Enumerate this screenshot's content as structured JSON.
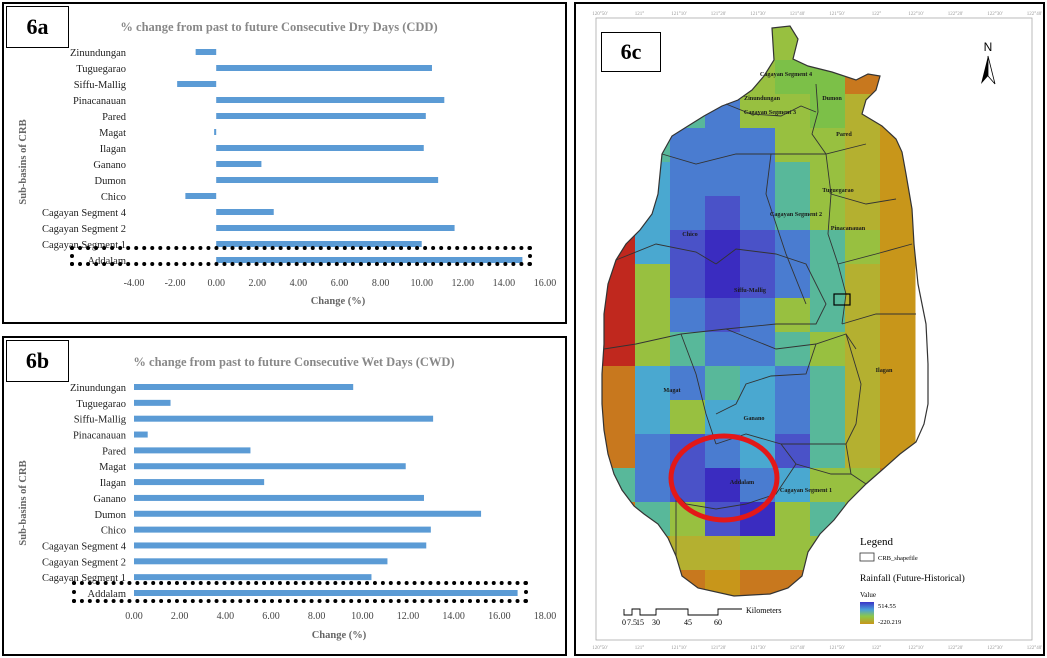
{
  "chart_data": [
    {
      "type": "bar",
      "panel_label": "6a",
      "title": "% change from past to future  Consecutive Dry Days (CDD)",
      "xlabel": "Change (%)",
      "ylabel": "Sub-basins of CRB",
      "xlim": [
        -4,
        16
      ],
      "xticks": [
        "-4.00",
        "-2.00",
        "0.00",
        "2.00",
        "4.00",
        "6.00",
        "8.00",
        "10.00",
        "12.00",
        "14.00",
        "16.00"
      ],
      "categories": [
        "Zinundungan",
        "Tuguegarao",
        "Siffu-Mallig",
        "Pinacanauan",
        "Pared",
        "Magat",
        "Ilagan",
        "Ganano",
        "Dumon",
        "Chico",
        "Cagayan Segment 4",
        "Cagayan Segment 2",
        "Cagayan Segment 1",
        "Addalam"
      ],
      "values": [
        -1.0,
        10.5,
        -1.9,
        11.1,
        10.2,
        -0.1,
        10.1,
        2.2,
        10.8,
        -1.5,
        2.8,
        11.6,
        10.0,
        14.9
      ],
      "highlighted": "Addalam",
      "color": "#5b9bd5"
    },
    {
      "type": "bar",
      "panel_label": "6b",
      "title": "% change from past to future Consecutive Wet Days (CWD)",
      "xlabel": "Change (%)",
      "ylabel": "Sub-basins of CRB",
      "xlim": [
        0,
        18
      ],
      "xticks": [
        "0.00",
        "2.00",
        "4.00",
        "6.00",
        "8.00",
        "10.00",
        "12.00",
        "14.00",
        "16.00",
        "18.00"
      ],
      "categories": [
        "Zinundungan",
        "Tuguegarao",
        "Siffu-Mallig",
        "Pinacanauan",
        "Pared",
        "Magat",
        "Ilagan",
        "Ganano",
        "Dumon",
        "Chico",
        "Cagayan Segment 4",
        "Cagayan Segment 2",
        "Cagayan Segment 1",
        "Addalam"
      ],
      "values": [
        9.6,
        1.6,
        13.1,
        0.6,
        5.1,
        11.9,
        5.7,
        12.7,
        15.2,
        13.0,
        12.8,
        11.1,
        10.4,
        16.8
      ],
      "highlighted": "Addalam",
      "color": "#5b9bd5"
    }
  ],
  "map": {
    "panel_label": "6c",
    "north": "N",
    "lon_ticks": [
      "120°50'",
      "121°",
      "121°10'",
      "121°20'",
      "121°30'",
      "121°40'",
      "121°50'",
      "122°",
      "122°10'",
      "122°20'",
      "122°30'",
      "122°40'"
    ],
    "regions": [
      "Zinundungan",
      "Cagayan Segment 4",
      "Dumon",
      "Cagayan Segment 3",
      "Pared",
      "Tuguegarao",
      "Cagayan Segment 2",
      "Pinacanauan",
      "Chico",
      "Siffu-Mallig",
      "Ilagan",
      "Magat",
      "Ganano",
      "Addalam",
      "Cagayan Segment 1"
    ],
    "legend": {
      "title": "Legend",
      "shape_label": "CRB_shapefile",
      "raster_title": "Rainfall (Future-Historical)",
      "value_label": "Value",
      "max": "514.55",
      "min": "-220.219"
    },
    "scale": {
      "ticks": [
        "0",
        "7.5",
        "15",
        "30",
        "45",
        "60"
      ],
      "unit": "Kilometers"
    }
  }
}
